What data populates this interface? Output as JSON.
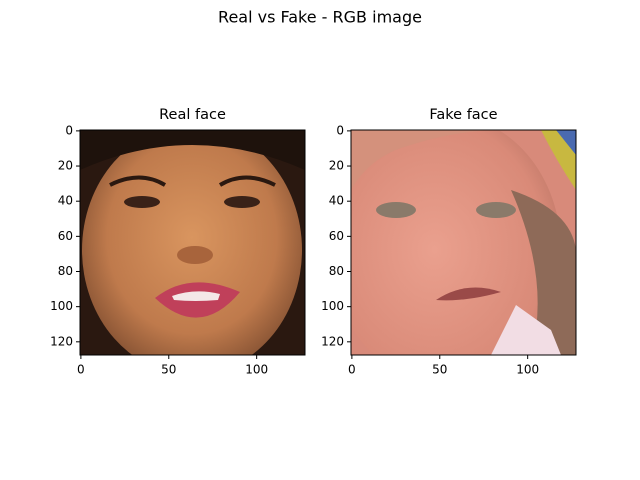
{
  "title": "Real vs Fake - RGB image",
  "chart_data": [
    {
      "type": "image",
      "title": "Real face",
      "xlim": [
        -0.5,
        127.5
      ],
      "ylim": [
        127.5,
        -0.5
      ],
      "xticks": [
        0,
        50,
        100
      ],
      "yticks": [
        0,
        20,
        40,
        60,
        80,
        100,
        120
      ]
    },
    {
      "type": "image",
      "title": "Fake face",
      "xlim": [
        -0.5,
        127.5
      ],
      "ylim": [
        127.5,
        -0.5
      ],
      "xticks": [
        0,
        50,
        100
      ],
      "yticks": [
        0,
        20,
        40,
        60,
        80,
        100,
        120
      ]
    }
  ]
}
